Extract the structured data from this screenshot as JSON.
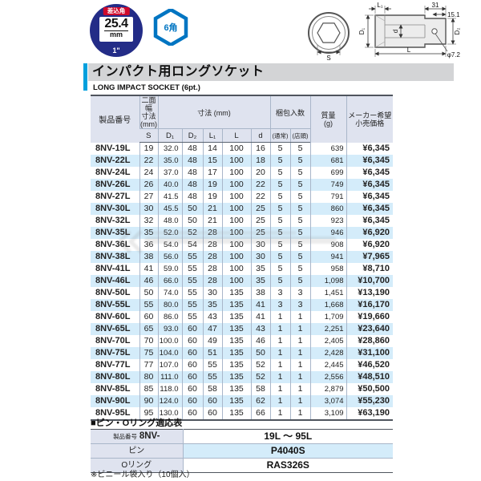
{
  "badges": {
    "drive_label": "差込角",
    "drive_size": "25.4",
    "drive_unit": "mm",
    "drive_inch": "1\"",
    "hex_label": "6角"
  },
  "diagram": {
    "labels": {
      "l1": "L₁",
      "dim31": "31",
      "dim151": "15.1",
      "d1": "D₁",
      "d": "d",
      "d2": "D₂",
      "s": "S",
      "l": "L",
      "phi": "φ7.2"
    }
  },
  "title": {
    "jp": "インパクト用ロングソケット",
    "en": "LONG IMPACT SOCKET (6pt.)"
  },
  "table": {
    "header": {
      "product": "製品番号",
      "width_group": "二面幅\n寸法\n(mm)",
      "dim_group": "寸法 (mm)",
      "pack_group": "梱包入数",
      "mass": "質量\n(g)",
      "price": "メーカー希望\n小売価格",
      "sub": [
        "S",
        "D₁",
        "D₂",
        "L₁",
        "L",
        "d",
        "(通常)",
        "(店頭)"
      ]
    },
    "rows": [
      [
        "8NV-19L",
        "19",
        "32.0",
        "48",
        "14",
        "100",
        "16",
        "5",
        "5",
        "639",
        "¥6,345"
      ],
      [
        "8NV-22L",
        "22",
        "35.0",
        "48",
        "15",
        "100",
        "18",
        "5",
        "5",
        "681",
        "¥6,345"
      ],
      [
        "8NV-24L",
        "24",
        "37.0",
        "48",
        "17",
        "100",
        "20",
        "5",
        "5",
        "699",
        "¥6,345"
      ],
      [
        "8NV-26L",
        "26",
        "40.0",
        "48",
        "19",
        "100",
        "22",
        "5",
        "5",
        "749",
        "¥6,345"
      ],
      [
        "8NV-27L",
        "27",
        "41.5",
        "48",
        "19",
        "100",
        "22",
        "5",
        "5",
        "791",
        "¥6,345"
      ],
      [
        "8NV-30L",
        "30",
        "45.5",
        "50",
        "21",
        "100",
        "25",
        "5",
        "5",
        "860",
        "¥6,345"
      ],
      [
        "8NV-32L",
        "32",
        "48.0",
        "50",
        "21",
        "100",
        "25",
        "5",
        "5",
        "923",
        "¥6,345"
      ],
      [
        "8NV-35L",
        "35",
        "52.0",
        "52",
        "28",
        "100",
        "25",
        "5",
        "5",
        "946",
        "¥6,920"
      ],
      [
        "8NV-36L",
        "36",
        "54.0",
        "54",
        "28",
        "100",
        "30",
        "5",
        "5",
        "908",
        "¥6,920"
      ],
      [
        "8NV-38L",
        "38",
        "56.0",
        "55",
        "28",
        "100",
        "30",
        "5",
        "5",
        "941",
        "¥7,965"
      ],
      [
        "8NV-41L",
        "41",
        "59.0",
        "55",
        "28",
        "100",
        "35",
        "5",
        "5",
        "958",
        "¥8,710"
      ],
      [
        "8NV-46L",
        "46",
        "66.0",
        "55",
        "28",
        "100",
        "35",
        "5",
        "5",
        "1,098",
        "¥10,700"
      ],
      [
        "8NV-50L",
        "50",
        "74.0",
        "55",
        "30",
        "135",
        "38",
        "3",
        "3",
        "1,451",
        "¥13,190"
      ],
      [
        "8NV-55L",
        "55",
        "80.0",
        "55",
        "35",
        "135",
        "41",
        "3",
        "3",
        "1,668",
        "¥16,170"
      ],
      [
        "8NV-60L",
        "60",
        "86.0",
        "55",
        "43",
        "135",
        "41",
        "1",
        "1",
        "1,709",
        "¥19,660"
      ],
      [
        "8NV-65L",
        "65",
        "93.0",
        "60",
        "47",
        "135",
        "43",
        "1",
        "1",
        "2,251",
        "¥23,640"
      ],
      [
        "8NV-70L",
        "70",
        "100.0",
        "60",
        "49",
        "135",
        "46",
        "1",
        "1",
        "2,405",
        "¥28,860"
      ],
      [
        "8NV-75L",
        "75",
        "104.0",
        "60",
        "51",
        "135",
        "50",
        "1",
        "1",
        "2,428",
        "¥31,100"
      ],
      [
        "8NV-77L",
        "77",
        "107.0",
        "60",
        "55",
        "135",
        "52",
        "1",
        "1",
        "2,445",
        "¥46,520"
      ],
      [
        "8NV-80L",
        "80",
        "111.0",
        "60",
        "55",
        "135",
        "52",
        "1",
        "1",
        "2,556",
        "¥48,510"
      ],
      [
        "8NV-85L",
        "85",
        "118.0",
        "60",
        "58",
        "135",
        "58",
        "1",
        "1",
        "2,879",
        "¥50,500"
      ],
      [
        "8NV-90L",
        "90",
        "124.0",
        "60",
        "60",
        "135",
        "62",
        "1",
        "1",
        "3,074",
        "¥55,230"
      ],
      [
        "8NV-95L",
        "95",
        "130.0",
        "60",
        "60",
        "135",
        "66",
        "1",
        "1",
        "3,109",
        "¥63,190"
      ]
    ]
  },
  "pin_section": {
    "heading": "■ピン・Oリング適応表",
    "rows": [
      {
        "label_prefix": "製品番号",
        "label": "8NV-",
        "value": "19L ～ 95L"
      },
      {
        "label_prefix": "",
        "label": "ピン",
        "value": "P4040S"
      },
      {
        "label_prefix": "",
        "label": "Oリング",
        "value": "RAS326S"
      }
    ]
  },
  "note": "※ビニール袋入り（10個入）",
  "colors": {
    "accent_cyan": "#00a0dd",
    "badge_navy": "#232c87",
    "badge_red": "#cf0a2c",
    "hex_blue": "#0075c2",
    "header_bg": "#dfe3ef",
    "stripe_blue": "#d4ecfa",
    "title_gray": "#d3d4d6"
  }
}
